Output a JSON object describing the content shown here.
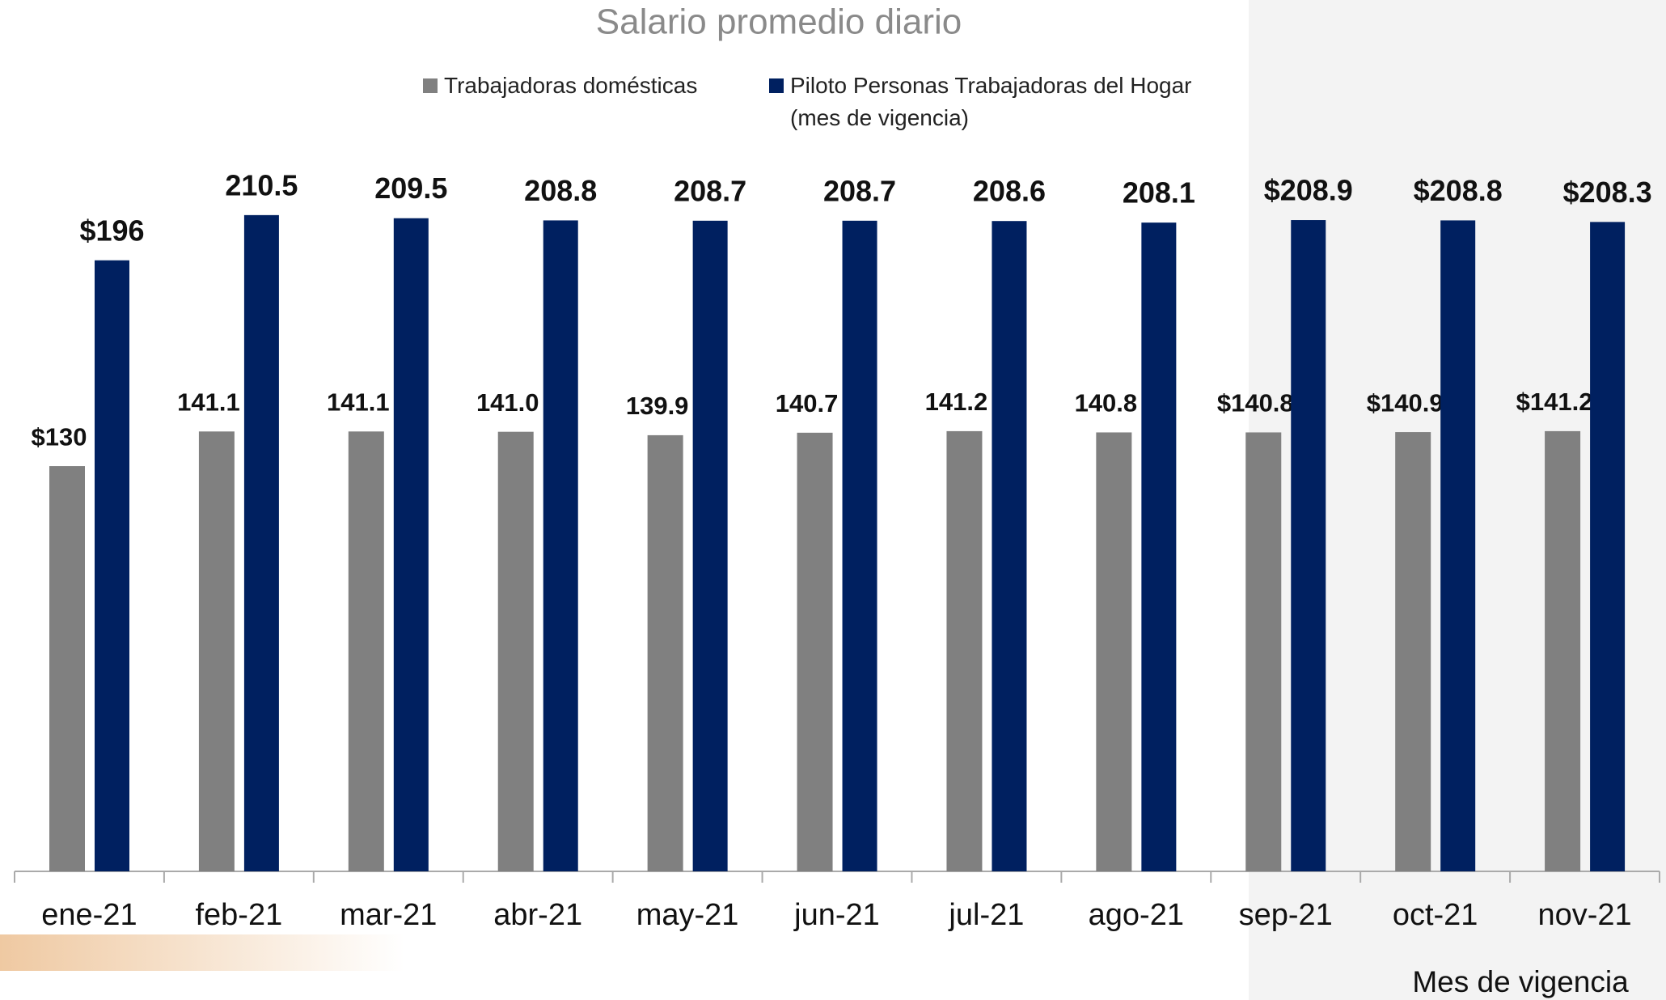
{
  "chart_data": {
    "type": "bar",
    "title": "Salario promedio diario",
    "x_label": "Mes de vigencia",
    "categories": [
      "ene-21",
      "feb-21",
      "mar-21",
      "abr-21",
      "may-21",
      "jun-21",
      "jul-21",
      "ago-21",
      "sep-21",
      "oct-21",
      "nov-21"
    ],
    "series": [
      {
        "name": "Trabajadoras domésticas",
        "color": "#808080",
        "values": [
          130,
          141.1,
          141.1,
          141.0,
          139.9,
          140.7,
          141.2,
          140.8,
          140.8,
          140.9,
          141.2
        ],
        "value_labels": [
          "$130",
          "141.1",
          "141.1",
          "141.0",
          "139.9",
          "140.7",
          "141.2",
          "140.8",
          "$140.8",
          "$140.9",
          "$141.2"
        ]
      },
      {
        "name": "Piloto Personas Trabajadoras del Hogar (mes de vigencia)",
        "color": "#002060",
        "values": [
          196,
          210.5,
          209.5,
          208.8,
          208.7,
          208.7,
          208.6,
          208.1,
          208.9,
          208.8,
          208.3
        ],
        "value_labels": [
          "$196",
          "210.5",
          "209.5",
          "208.8",
          "208.7",
          "208.7",
          "208.6",
          "208.1",
          "$208.9",
          "$208.8",
          "$208.3"
        ]
      }
    ],
    "ylim": [
      0,
      225
    ]
  }
}
